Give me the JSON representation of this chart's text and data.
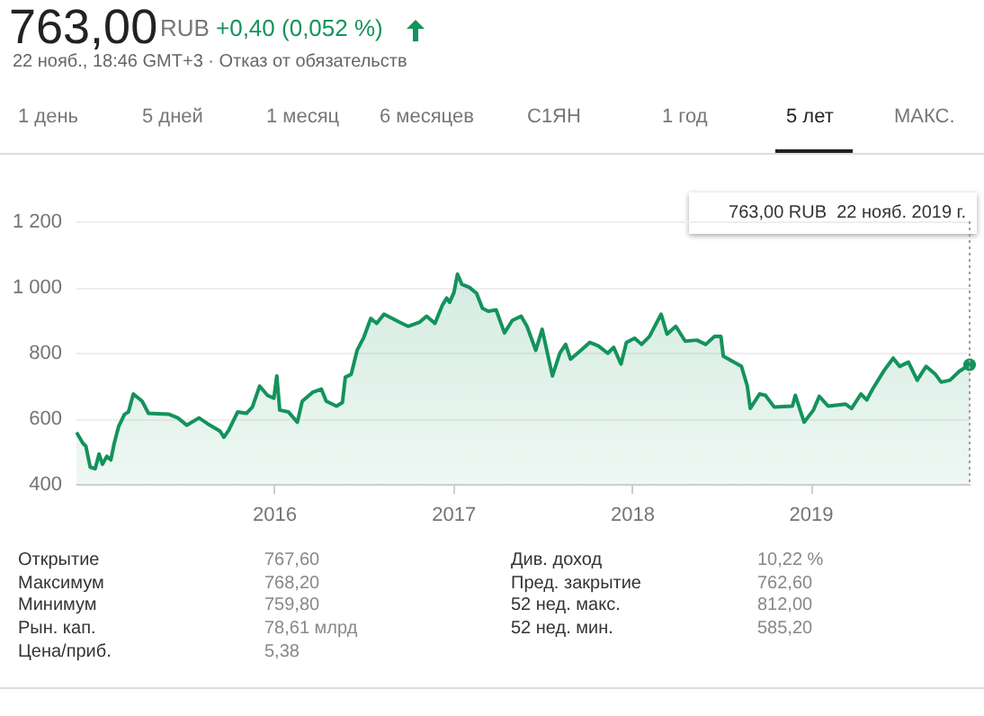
{
  "chart_data": {
    "type": "area",
    "title": "763,00",
    "subtitle": "22 нояб., 18:46 GMT+3 · Отказ от обязательств",
    "annotations": [
      "RUB",
      "+0,40 (0,052 %)",
      "1 день",
      "5 дней",
      "1 месяц",
      "6 месяцев",
      "C1ЯН",
      "1 год",
      "5 лет",
      "МАКС.",
      "763,00 RUB  22 нояб. 2019 г.",
      "Открытие",
      "767,60",
      "Максимум",
      "768,20",
      "Минимум",
      "759,80",
      "Рын. кап.",
      "78,61 млрд",
      "Цена/приб.",
      "5,38",
      "Див. доход",
      "10,22 %",
      "Пред. закрытие",
      "762,60",
      "52 нед. макс.",
      "812,00",
      "52 нед. мин.",
      "585,20"
    ],
    "x": [
      "2014-11-24",
      "2014-12-07",
      "2014-12-13",
      "2014-12-22",
      "2015-01-01",
      "2015-01-09",
      "2015-01-16",
      "2015-01-25",
      "2015-02-02",
      "2015-02-09",
      "2015-02-18",
      "2015-03-02",
      "2015-03-10",
      "2015-03-20",
      "2015-04-07",
      "2015-04-20",
      "2015-06-01",
      "2015-06-19",
      "2015-07-07",
      "2015-08-01",
      "2015-08-19",
      "2015-09-13",
      "2015-09-21",
      "2015-10-01",
      "2015-10-19",
      "2015-11-06",
      "2015-11-18",
      "2015-12-03",
      "2015-12-19",
      "2016-01-01",
      "2016-01-07",
      "2016-01-13",
      "2016-01-31",
      "2016-02-18",
      "2016-02-28",
      "2016-03-20",
      "2016-04-07",
      "2016-04-17",
      "2016-05-08",
      "2016-05-20",
      "2016-05-26",
      "2016-06-07",
      "2016-06-19",
      "2016-07-02",
      "2016-07-17",
      "2016-07-29",
      "2016-08-13",
      "2016-09-13",
      "2016-10-01",
      "2016-10-25",
      "2016-11-08",
      "2016-11-25",
      "2016-12-10",
      "2016-12-19",
      "2016-12-25",
      "2017-01-03",
      "2017-01-10",
      "2017-01-19",
      "2017-02-03",
      "2017-02-18",
      "2017-03-02",
      "2017-03-14",
      "2017-03-30",
      "2017-04-16",
      "2017-05-02",
      "2017-05-20",
      "2017-06-01",
      "2017-06-19",
      "2017-07-02",
      "2017-07-23",
      "2017-08-07",
      "2017-08-19",
      "2017-08-29",
      "2017-09-19",
      "2017-10-07",
      "2017-10-25",
      "2017-11-13",
      "2017-11-25",
      "2017-12-10",
      "2017-12-21",
      "2018-01-07",
      "2018-01-21",
      "2018-02-06",
      "2018-03-02",
      "2018-03-14",
      "2018-04-01",
      "2018-04-20",
      "2018-05-14",
      "2018-06-01",
      "2018-06-19",
      "2018-07-02",
      "2018-07-07",
      "2018-08-13",
      "2018-08-25",
      "2018-08-31",
      "2018-09-19",
      "2018-10-01",
      "2018-10-19",
      "2018-11-25",
      "2018-12-01",
      "2018-12-19",
      "2019-01-07",
      "2019-01-19",
      "2019-02-06",
      "2019-03-14",
      "2019-03-26",
      "2019-04-14",
      "2019-04-26",
      "2019-05-08",
      "2019-06-01",
      "2019-06-19",
      "2019-07-02",
      "2019-07-20",
      "2019-08-07",
      "2019-08-25",
      "2019-09-13",
      "2019-09-25",
      "2019-10-13",
      "2019-11-01",
      "2019-11-22"
    ],
    "series": [
      {
        "color": "#13935b",
        "values": [
          557,
          524,
          515,
          451,
          446,
          491,
          460,
          484,
          473,
          524,
          575,
          612,
          619,
          674,
          652,
          615,
          612,
          601,
          579,
          601,
          583,
          561,
          542,
          564,
          619,
          615,
          634,
          698,
          670,
          661,
          729,
          625,
          619,
          588,
          652,
          679,
          689,
          652,
          637,
          648,
          725,
          734,
          807,
          844,
          904,
          889,
          917,
          893,
          880,
          893,
          911,
          889,
          944,
          966,
          953,
          984,
          1039,
          1008,
          999,
          981,
          935,
          926,
          930,
          860,
          898,
          911,
          880,
          807,
          871,
          729,
          798,
          825,
          780,
          807,
          831,
          820,
          798,
          816,
          765,
          831,
          844,
          825,
          849,
          917,
          856,
          880,
          835,
          838,
          825,
          849,
          849,
          789,
          758,
          698,
          630,
          674,
          670,
          634,
          637,
          670,
          588,
          625,
          667,
          637,
          643,
          630,
          674,
          656,
          689,
          747,
          783,
          758,
          771,
          716,
          758,
          734,
          710,
          716,
          743,
          763
        ]
      }
    ],
    "xlim": [
      "2014-11-22",
      "2019-11-22"
    ],
    "xticks": [
      "2016",
      "2017",
      "2018",
      "2019"
    ],
    "ylim": [
      400,
      1200
    ],
    "yticks": [
      400,
      600,
      800,
      {
        "value": 1000,
        "label": "1 000"
      },
      {
        "value": 1200,
        "label": "1 200"
      }
    ],
    "grid": "y",
    "ref_lines": [
      {
        "axis": "x",
        "value": "2019-11-22",
        "line_style": "dotted",
        "color": "#9e9e9e"
      }
    ]
  }
}
